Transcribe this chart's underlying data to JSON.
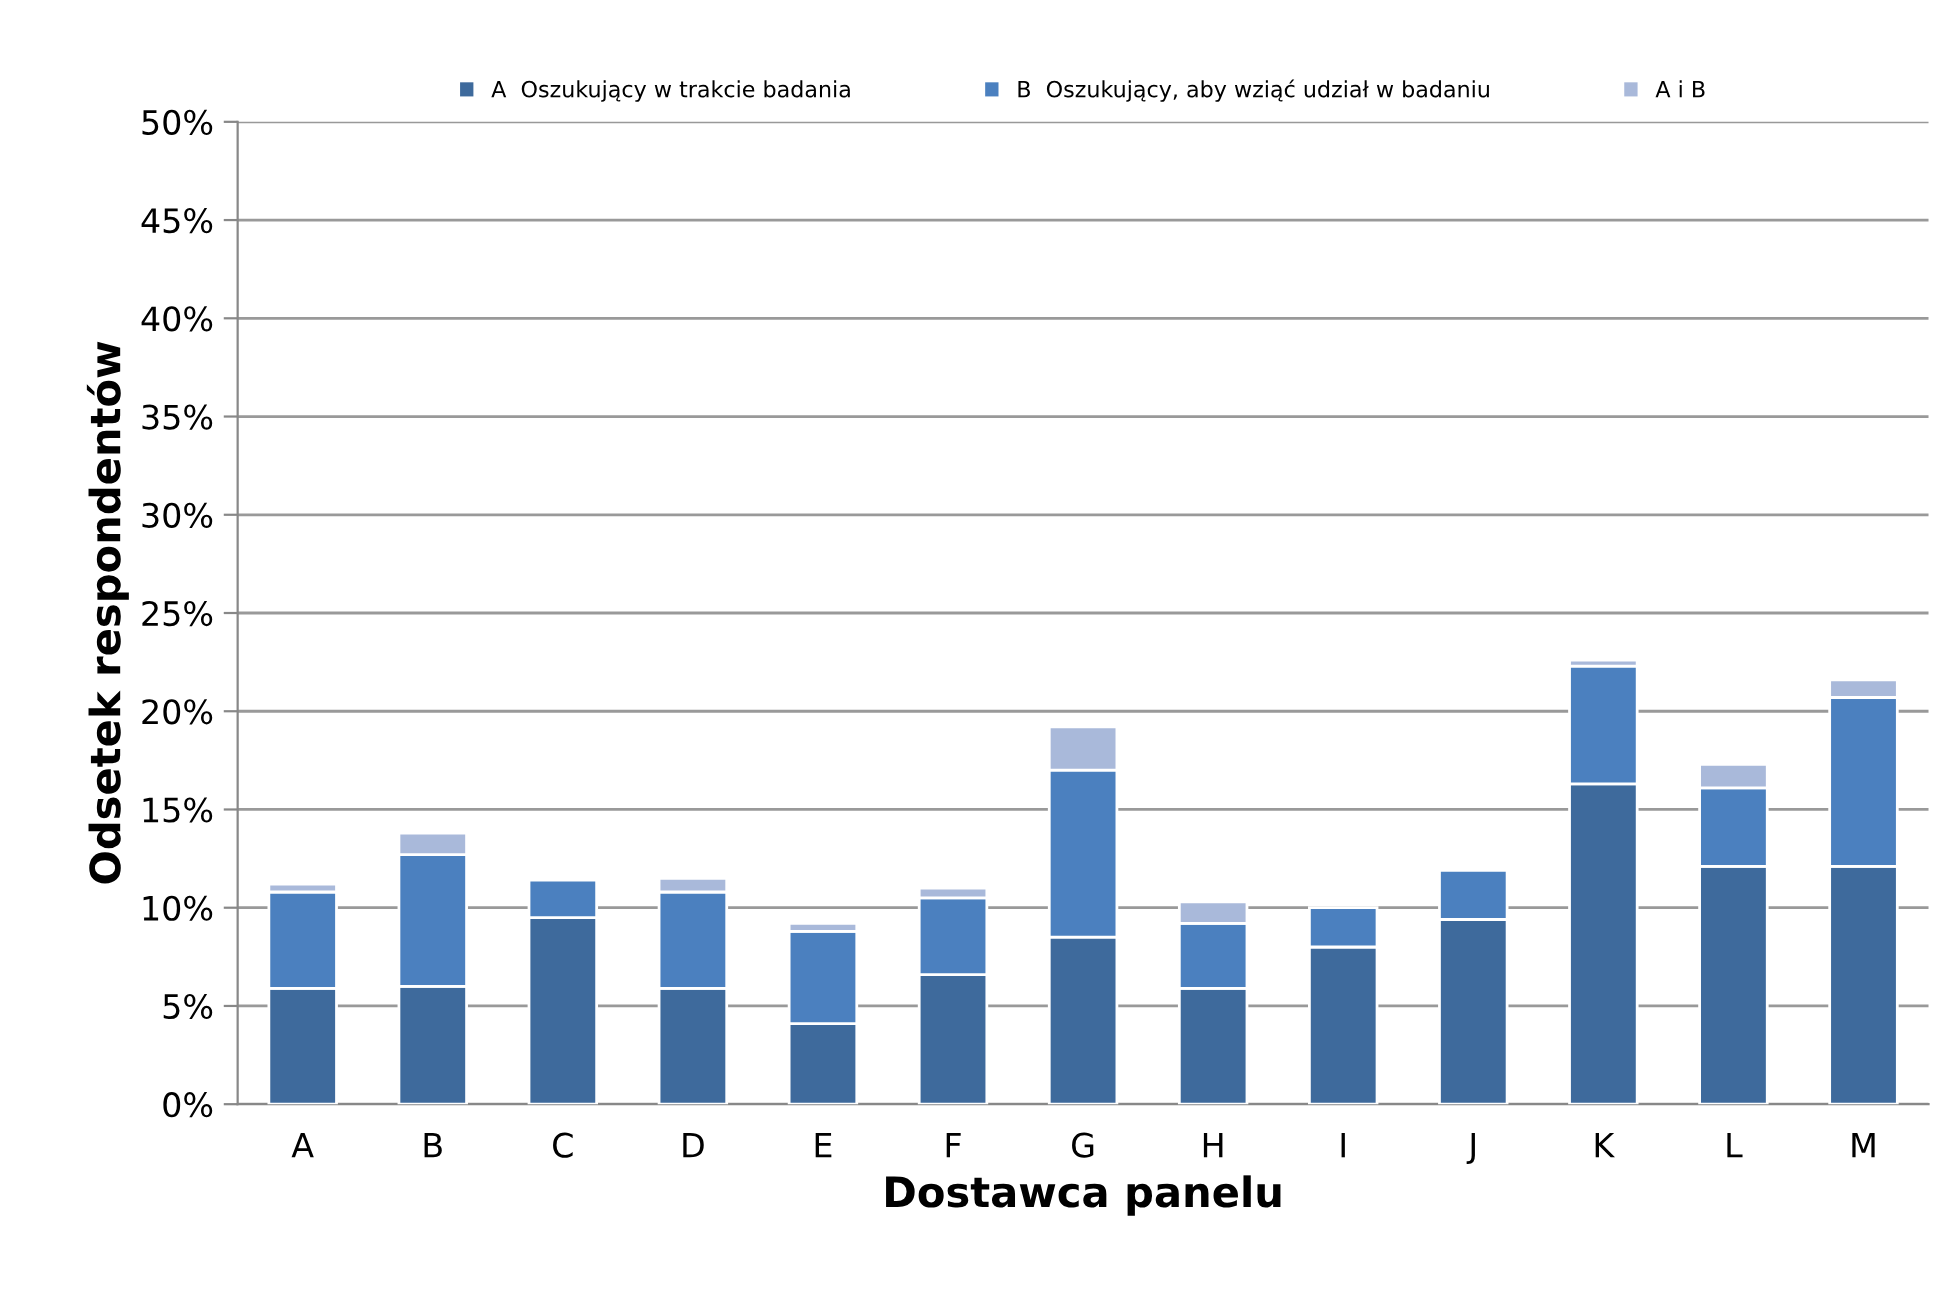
{
  "chart_data": {
    "type": "bar",
    "stacked": true,
    "xlabel": "Dostawca panelu",
    "ylabel": "Odsetek respondentów",
    "categories": [
      "A",
      "B",
      "C",
      "D",
      "E",
      "F",
      "G",
      "H",
      "I",
      "J",
      "K",
      "L",
      "M"
    ],
    "series": [
      {
        "name": "A  Oszukujący w trakcie badania",
        "color": "#3e6a9c",
        "values": [
          5.9,
          6.0,
          9.5,
          5.9,
          4.1,
          6.6,
          8.5,
          5.9,
          8.0,
          9.4,
          16.3,
          12.1,
          12.1
        ]
      },
      {
        "name": "B  Oszukujący, aby wziąć udział w badaniu",
        "color": "#4b80bf",
        "values": [
          4.9,
          6.7,
          1.9,
          4.9,
          4.7,
          3.9,
          8.5,
          3.3,
          2.0,
          2.5,
          6.0,
          4.0,
          8.6
        ]
      },
      {
        "name": "A i B",
        "color": "#a9b9da",
        "values": [
          0.4,
          1.1,
          null,
          0.7,
          0.4,
          0.5,
          2.2,
          1.1,
          null,
          null,
          0.3,
          1.2,
          0.9
        ]
      }
    ],
    "ylim": [
      0,
      50
    ],
    "yticks": [
      {
        "value": 0,
        "label": "0%"
      },
      {
        "value": 5,
        "label": "5%"
      },
      {
        "value": 10,
        "label": "10%"
      },
      {
        "value": 15,
        "label": "15%"
      },
      {
        "value": 20,
        "label": "20%"
      },
      {
        "value": 25,
        "label": "25%"
      },
      {
        "value": 30,
        "label": "30%"
      },
      {
        "value": 35,
        "label": "35%"
      },
      {
        "value": 40,
        "label": "40%"
      },
      {
        "value": 45,
        "label": "45%"
      },
      {
        "value": 50,
        "label": "50%"
      }
    ],
    "grid": "y",
    "legend": "top"
  }
}
